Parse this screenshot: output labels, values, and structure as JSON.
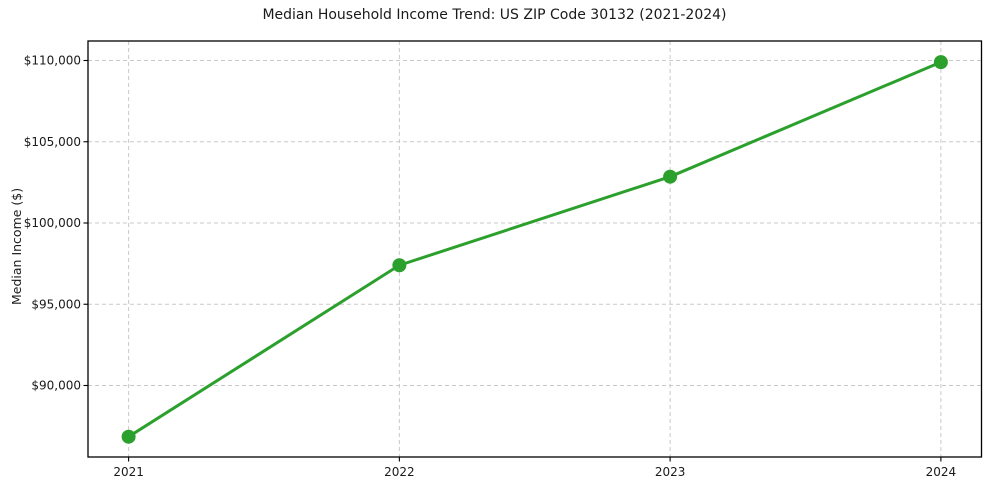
{
  "chart_data": {
    "type": "line",
    "title": "Median Household Income Trend: US ZIP Code 30132 (2021-2024)",
    "xlabel": "",
    "ylabel": "Median Income ($)",
    "x": [
      2021,
      2022,
      2023,
      2024
    ],
    "x_tick_labels": [
      "2021",
      "2022",
      "2023",
      "2024"
    ],
    "series": [
      {
        "name": "Median Household Income",
        "color": "#2ca02c",
        "marker": "circle",
        "values": [
          86850,
          97400,
          102850,
          109900
        ]
      }
    ],
    "y_ticks": [
      90000,
      95000,
      100000,
      105000,
      110000
    ],
    "y_tick_labels": [
      "$90,000",
      "$95,000",
      "$100,000",
      "$105,000",
      "$110,000"
    ],
    "xlim": [
      2020.85,
      2024.15
    ],
    "ylim": [
      85600,
      111200
    ],
    "grid": true,
    "grid_style": "dashed",
    "legend_position": "none"
  },
  "colors": {
    "line": "#2ca02c",
    "grid": "#c9c9c9",
    "axis": "#000000",
    "background": "#ffffff",
    "text": "#1a1a1a"
  }
}
